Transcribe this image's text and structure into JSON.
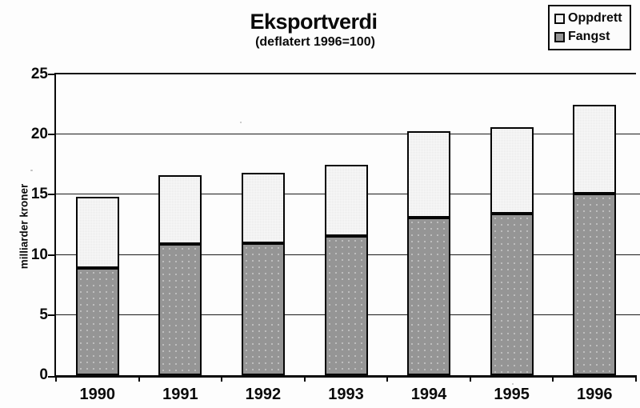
{
  "colors": {
    "fangst": "#959595",
    "oppdrett": "#e9e9e9",
    "legend_oppdrett_swatch": "#f2f2f2",
    "axis": "#0a0a0a",
    "background": "#fdfdfd"
  },
  "chart_data": {
    "type": "bar",
    "stacked": true,
    "title": "Eksportverdi",
    "subtitle": "(deflatert 1996=100)",
    "ylabel": "milliarder kroner",
    "xlabel": "",
    "categories": [
      "1990",
      "1991",
      "1992",
      "1993",
      "1994",
      "1995",
      "1996"
    ],
    "series": [
      {
        "name": "Fangst",
        "values": [
          8.9,
          10.9,
          11.0,
          11.6,
          13.1,
          13.4,
          15.1
        ]
      },
      {
        "name": "Oppdrett",
        "values": [
          5.9,
          5.7,
          5.8,
          5.9,
          7.2,
          7.2,
          7.4
        ]
      }
    ],
    "totals": [
      14.8,
      16.6,
      16.8,
      17.5,
      20.3,
      20.6,
      22.5
    ],
    "ylim": [
      0,
      25
    ],
    "yticks": [
      0,
      5,
      10,
      15,
      20,
      25
    ],
    "grid": true,
    "legend_position": "top-right",
    "legend_order": [
      "Oppdrett",
      "Fangst"
    ]
  }
}
